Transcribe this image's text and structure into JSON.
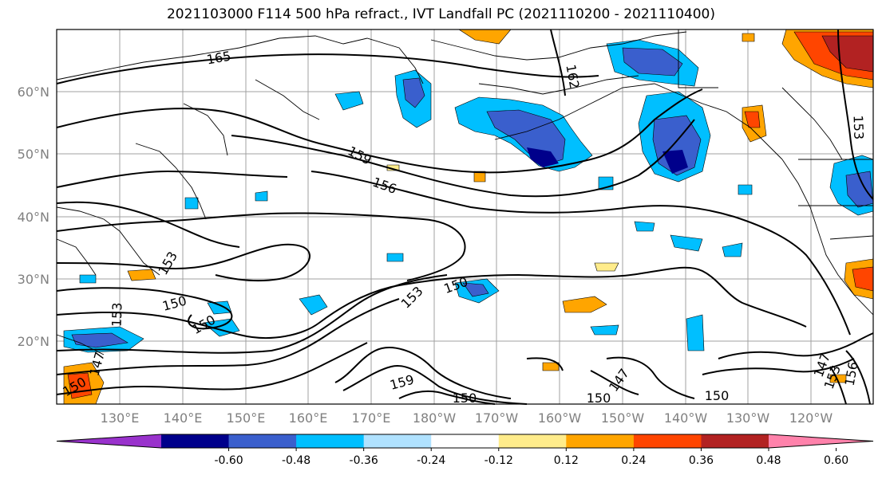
{
  "title": "2021103000 F114 500 hPa refract., IVT Landfall PC (2021110200 - 2021110400)",
  "map": {
    "lat_labels": [
      "60°N",
      "50°N",
      "40°N",
      "30°N",
      "20°N"
    ],
    "lon_labels": [
      "130°E",
      "140°E",
      "150°E",
      "160°E",
      "170°E",
      "180°W",
      "170°W",
      "160°W",
      "150°W",
      "140°W",
      "130°W",
      "120°W"
    ],
    "contour_labels": [
      "165",
      "162",
      "159",
      "156",
      "153",
      "153",
      "153",
      "153",
      "150",
      "150",
      "150",
      "150",
      "150",
      "159",
      "147",
      "147",
      "147",
      "153",
      "156",
      "150",
      "150"
    ]
  },
  "colorbar": {
    "ticks": [
      "-0.60",
      "-0.48",
      "-0.36",
      "-0.24",
      "-0.12",
      "0.12",
      "0.24",
      "0.36",
      "0.48",
      "0.60"
    ],
    "colors": [
      "#9932cc",
      "#00008b",
      "#3a5fcd",
      "#00bfff",
      "#b0e2ff",
      "#ffffff",
      "#ffec8b",
      "#ffa500",
      "#ff4500",
      "#b22222",
      "#ff82ab"
    ]
  }
}
